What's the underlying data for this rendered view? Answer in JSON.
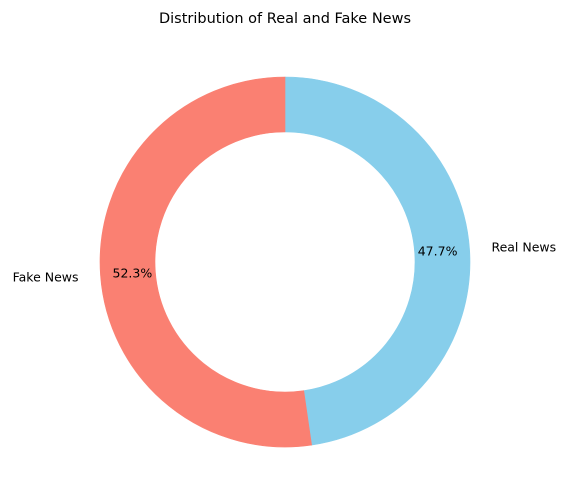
{
  "chart_data": {
    "type": "pie",
    "style": "donut",
    "title": "Distribution of Real and Fake News",
    "categories": [
      "Real News",
      "Fake News"
    ],
    "values": [
      47.7,
      52.3
    ],
    "percent_labels": [
      "47.7%",
      "52.3%"
    ],
    "colors": [
      "#87CEEB",
      "#FA8072"
    ],
    "start_angle_deg": 90,
    "direction": "clockwise",
    "legend": "none"
  }
}
